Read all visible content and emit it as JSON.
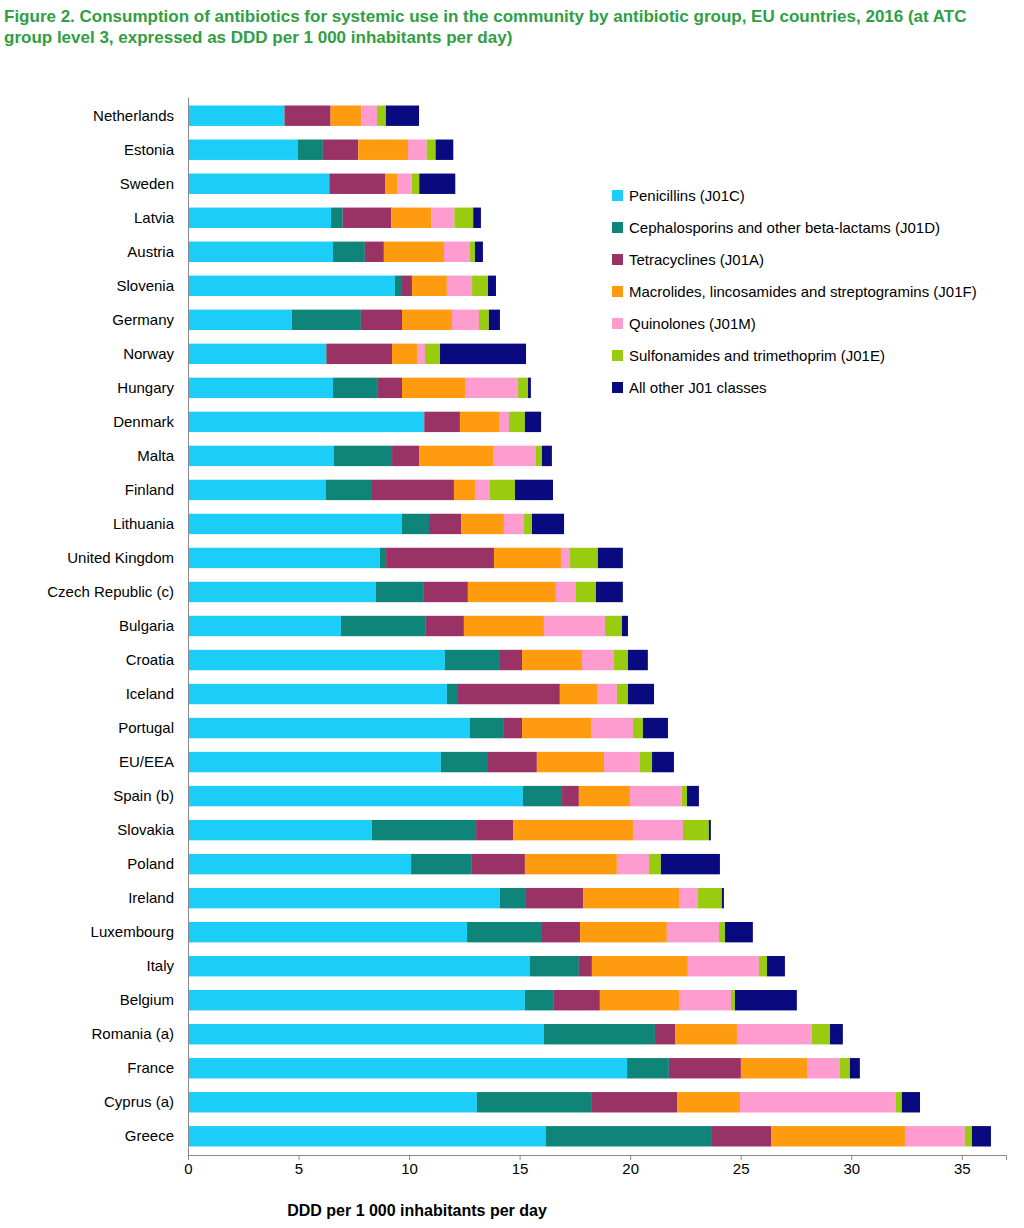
{
  "chart_data": {
    "type": "bar",
    "orientation": "horizontal",
    "stacked": true,
    "title": "Figure 2. Consumption of antibiotics for systemic use in the community by antibiotic group, EU countries, 2016 (at ATC group level 3, expressed as DDD per 1 000 inhabitants per day)",
    "x_label": "DDD per 1 000 inhabitants per day",
    "categories": [
      "Netherlands",
      "Estonia",
      "Sweden",
      "Latvia",
      "Austria",
      "Slovenia",
      "Germany",
      "Norway",
      "Hungary",
      "Denmark",
      "Malta",
      "Finland",
      "Lithuania",
      "United Kingdom",
      "Czech Republic (c)",
      "Bulgaria",
      "Croatia",
      "Iceland",
      "Portugal",
      "EU/EEA",
      "Spain (b)",
      "Slovakia",
      "Poland",
      "Ireland",
      "Luxembourg",
      "Italy",
      "Belgium",
      "Romania (a)",
      "France",
      "Cyprus (a)",
      "Greece"
    ],
    "xlim": [
      0,
      37
    ],
    "xticks": [
      0,
      5,
      10,
      15,
      20,
      25,
      30,
      35
    ],
    "legend": "upper right",
    "series": [
      {
        "name": "Penicillins (J01C)",
        "color": "#1ccdf7",
        "values": [
          4.35,
          4.97,
          6.38,
          6.47,
          6.56,
          9.36,
          4.7,
          6.24,
          6.56,
          10.67,
          6.6,
          6.24,
          9.68,
          8.68,
          8.5,
          6.92,
          11.62,
          11.71,
          12.75,
          11.44,
          15.15,
          8.32,
          10.09,
          14.11,
          12.62,
          15.47,
          15.24,
          16.1,
          19.86,
          13.07,
          16.19
        ]
      },
      {
        "name": "Cephalosporins and other beta-lactams (J01D)",
        "color": "#0f8479",
        "values": [
          0.02,
          1.13,
          0.03,
          0.53,
          1.44,
          0.32,
          3.12,
          0.03,
          2.03,
          0.02,
          2.63,
          2.04,
          1.22,
          0.28,
          2.17,
          3.84,
          2.45,
          0.46,
          1.54,
          2.13,
          1.77,
          4.71,
          2.75,
          1.18,
          3.35,
          2.21,
          1.31,
          5.02,
          1.89,
          5.2,
          7.51
        ]
      },
      {
        "name": "Tetracyclines (J01A)",
        "color": "#993366",
        "values": [
          2.08,
          1.6,
          2.5,
          2.2,
          0.86,
          0.45,
          1.86,
          2.96,
          1.09,
          1.61,
          1.22,
          3.75,
          1.45,
          4.88,
          1.99,
          1.72,
          1.04,
          4.65,
          0.82,
          2.21,
          0.76,
          1.67,
          2.4,
          2.58,
          1.76,
          0.59,
          2.08,
          0.91,
          3.26,
          3.85,
          2.67
        ]
      },
      {
        "name": "Macrolides, lincosamides and streptogramins (J01F)",
        "color": "#ff9b0f",
        "values": [
          1.4,
          2.25,
          0.55,
          1.8,
          2.72,
          1.58,
          2.26,
          1.13,
          2.85,
          1.77,
          3.35,
          0.95,
          1.94,
          3.03,
          3.98,
          3.62,
          2.71,
          1.68,
          3.12,
          3.04,
          2.31,
          5.43,
          4.16,
          4.34,
          3.93,
          4.34,
          3.58,
          2.8,
          2.99,
          2.85,
          6.06
        ]
      },
      {
        "name": "Quinolones (J01M)",
        "color": "#ff9ccf",
        "values": [
          0.7,
          0.85,
          0.65,
          1.05,
          1.17,
          1.14,
          1.22,
          0.36,
          2.4,
          0.45,
          1.94,
          0.68,
          0.91,
          0.41,
          0.91,
          2.76,
          1.45,
          0.9,
          1.9,
          1.62,
          2.35,
          2.26,
          1.45,
          0.86,
          2.36,
          3.22,
          2.35,
          3.39,
          1.49,
          7.05,
          2.71
        ]
      },
      {
        "name": "Sulfonamides and trimethoprim (J01E)",
        "color": "#99cc0f",
        "values": [
          0.4,
          0.4,
          0.35,
          0.85,
          0.23,
          0.72,
          0.45,
          0.68,
          0.45,
          0.72,
          0.27,
          1.13,
          0.36,
          1.26,
          0.9,
          0.77,
          0.63,
          0.5,
          0.45,
          0.55,
          0.23,
          1.17,
          0.54,
          1.08,
          0.27,
          0.36,
          0.18,
          0.82,
          0.45,
          0.27,
          0.32
        ]
      },
      {
        "name": "All other J01 classes",
        "color": "#0a0a80",
        "values": [
          1.5,
          0.8,
          1.63,
          0.35,
          0.36,
          0.36,
          0.5,
          3.89,
          0.13,
          0.73,
          0.45,
          1.72,
          1.45,
          1.13,
          1.22,
          0.27,
          0.9,
          1.18,
          1.13,
          0.99,
          0.54,
          0.09,
          2.67,
          0.09,
          1.26,
          0.81,
          2.8,
          0.58,
          0.45,
          0.82,
          0.86
        ]
      }
    ]
  }
}
